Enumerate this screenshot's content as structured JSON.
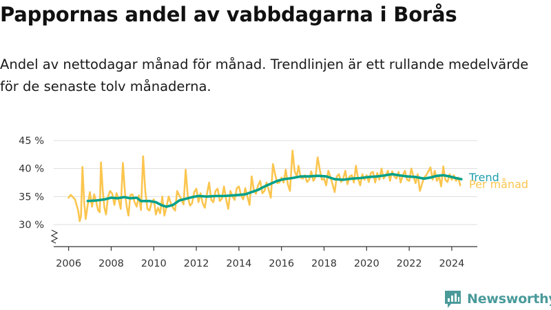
{
  "title": "Pappornas andel av vabbdagarna i Borås",
  "subtitle": "Andel av nettodagar månad för månad. Trendlinjen är ett rullande medelvärde för de senaste tolv månaderna.",
  "brand": {
    "name": "Newsworthy",
    "logo_icon": "newsworthy-logo-icon"
  },
  "colors": {
    "monthly": "#FBC54E",
    "trend": "#00A08A",
    "trend_label": "#1E9FAE",
    "grid": "#dddddd",
    "axis": "#333333",
    "brand": "#4a9a9a"
  },
  "chart_data": {
    "type": "line",
    "title": "Pappornas andel av vabbdagarna i Borås",
    "subtitle": "Andel av nettodagar månad för månad. Trendlinjen är ett rullande medelvärde för de senaste tolv månaderna.",
    "xlabel": "",
    "ylabel": "",
    "xlim": [
      2005.3,
      2025.2
    ],
    "ylim": [
      30,
      45
    ],
    "axis_break": true,
    "grid": true,
    "y_ticks": [
      30,
      35,
      40,
      45
    ],
    "y_tick_labels": [
      "30 %",
      "35 %",
      "40 %",
      "45 %"
    ],
    "x_ticks": [
      2006,
      2008,
      2010,
      2012,
      2014,
      2016,
      2018,
      2020,
      2022,
      2024
    ],
    "x_tick_labels": [
      "2006",
      "2008",
      "2010",
      "2012",
      "2014",
      "2016",
      "2018",
      "2020",
      "2022",
      "2024"
    ],
    "series": [
      {
        "name": "Per månad",
        "color": "#FBC54E",
        "points": [
          [
            2006.0,
            34.8
          ],
          [
            2006.1,
            35.3
          ],
          [
            2006.3,
            34.5
          ],
          [
            2006.45,
            32.5
          ],
          [
            2006.52,
            30.6
          ],
          [
            2006.58,
            31.5
          ],
          [
            2006.65,
            40.3
          ],
          [
            2006.73,
            34.0
          ],
          [
            2006.8,
            31.0
          ],
          [
            2006.9,
            33.5
          ],
          [
            2007.0,
            35.8
          ],
          [
            2007.1,
            33.2
          ],
          [
            2007.2,
            35.4
          ],
          [
            2007.3,
            34.0
          ],
          [
            2007.38,
            32.6
          ],
          [
            2007.46,
            32.2
          ],
          [
            2007.52,
            41.1
          ],
          [
            2007.6,
            36.2
          ],
          [
            2007.68,
            33.0
          ],
          [
            2007.76,
            31.8
          ],
          [
            2007.85,
            35.0
          ],
          [
            2007.95,
            36.0
          ],
          [
            2008.05,
            35.5
          ],
          [
            2008.15,
            33.5
          ],
          [
            2008.25,
            35.6
          ],
          [
            2008.35,
            34.4
          ],
          [
            2008.45,
            32.8
          ],
          [
            2008.55,
            41.0
          ],
          [
            2008.65,
            35.6
          ],
          [
            2008.73,
            33.2
          ],
          [
            2008.81,
            31.6
          ],
          [
            2008.9,
            35.3
          ],
          [
            2009.0,
            35.4
          ],
          [
            2009.1,
            34.0
          ],
          [
            2009.2,
            33.2
          ],
          [
            2009.3,
            35.2
          ],
          [
            2009.4,
            32.6
          ],
          [
            2009.5,
            42.2
          ],
          [
            2009.6,
            36.0
          ],
          [
            2009.7,
            32.8
          ],
          [
            2009.8,
            32.5
          ],
          [
            2009.9,
            34.0
          ],
          [
            2010.0,
            34.5
          ],
          [
            2010.1,
            31.8
          ],
          [
            2010.2,
            33.0
          ],
          [
            2010.3,
            32.0
          ],
          [
            2010.4,
            35.0
          ],
          [
            2010.5,
            31.6
          ],
          [
            2010.6,
            33.2
          ],
          [
            2010.7,
            35.0
          ],
          [
            2010.8,
            33.8
          ],
          [
            2010.9,
            33.0
          ],
          [
            2011.0,
            32.5
          ],
          [
            2011.1,
            36.0
          ],
          [
            2011.2,
            35.2
          ],
          [
            2011.3,
            34.5
          ],
          [
            2011.4,
            33.6
          ],
          [
            2011.5,
            39.8
          ],
          [
            2011.6,
            35.0
          ],
          [
            2011.7,
            33.4
          ],
          [
            2011.8,
            33.8
          ],
          [
            2011.9,
            35.8
          ],
          [
            2012.0,
            36.4
          ],
          [
            2012.1,
            34.0
          ],
          [
            2012.2,
            35.6
          ],
          [
            2012.3,
            33.8
          ],
          [
            2012.4,
            33.0
          ],
          [
            2012.5,
            35.5
          ],
          [
            2012.6,
            37.5
          ],
          [
            2012.7,
            34.4
          ],
          [
            2012.8,
            34.0
          ],
          [
            2012.9,
            36.0
          ],
          [
            2013.0,
            36.4
          ],
          [
            2013.1,
            34.2
          ],
          [
            2013.2,
            34.6
          ],
          [
            2013.3,
            36.8
          ],
          [
            2013.4,
            34.5
          ],
          [
            2013.5,
            32.8
          ],
          [
            2013.6,
            36.0
          ],
          [
            2013.7,
            35.0
          ],
          [
            2013.8,
            34.4
          ],
          [
            2013.9,
            36.5
          ],
          [
            2014.0,
            36.8
          ],
          [
            2014.1,
            35.2
          ],
          [
            2014.2,
            34.5
          ],
          [
            2014.3,
            36.5
          ],
          [
            2014.4,
            35.0
          ],
          [
            2014.5,
            33.5
          ],
          [
            2014.6,
            38.6
          ],
          [
            2014.7,
            36.2
          ],
          [
            2014.8,
            35.5
          ],
          [
            2014.9,
            37.0
          ],
          [
            2015.0,
            37.8
          ],
          [
            2015.1,
            35.6
          ],
          [
            2015.2,
            36.0
          ],
          [
            2015.3,
            37.5
          ],
          [
            2015.4,
            36.2
          ],
          [
            2015.5,
            34.8
          ],
          [
            2015.6,
            40.8
          ],
          [
            2015.7,
            39.0
          ],
          [
            2015.8,
            37.4
          ],
          [
            2015.9,
            37.5
          ],
          [
            2016.0,
            38.4
          ],
          [
            2016.1,
            37.5
          ],
          [
            2016.2,
            39.8
          ],
          [
            2016.3,
            37.2
          ],
          [
            2016.4,
            36.0
          ],
          [
            2016.52,
            43.2
          ],
          [
            2016.62,
            39.5
          ],
          [
            2016.72,
            38.6
          ],
          [
            2016.8,
            40.5
          ],
          [
            2016.9,
            38.4
          ],
          [
            2017.0,
            38.2
          ],
          [
            2017.1,
            38.8
          ],
          [
            2017.2,
            37.6
          ],
          [
            2017.3,
            38.0
          ],
          [
            2017.4,
            39.5
          ],
          [
            2017.5,
            37.8
          ],
          [
            2017.6,
            38.5
          ],
          [
            2017.7,
            42.0
          ],
          [
            2017.8,
            39.8
          ],
          [
            2017.9,
            38.0
          ],
          [
            2018.0,
            38.2
          ],
          [
            2018.1,
            37.0
          ],
          [
            2018.2,
            39.6
          ],
          [
            2018.3,
            38.5
          ],
          [
            2018.4,
            37.2
          ],
          [
            2018.5,
            35.8
          ],
          [
            2018.6,
            38.6
          ],
          [
            2018.7,
            39.0
          ],
          [
            2018.8,
            37.6
          ],
          [
            2018.9,
            38.2
          ],
          [
            2019.0,
            39.6
          ],
          [
            2019.1,
            37.2
          ],
          [
            2019.2,
            38.6
          ],
          [
            2019.3,
            38.8
          ],
          [
            2019.4,
            37.5
          ],
          [
            2019.5,
            40.5
          ],
          [
            2019.6,
            38.2
          ],
          [
            2019.7,
            37.0
          ],
          [
            2019.8,
            39.0
          ],
          [
            2019.9,
            38.0
          ],
          [
            2020.0,
            38.8
          ],
          [
            2020.1,
            37.6
          ],
          [
            2020.2,
            39.2
          ],
          [
            2020.3,
            39.4
          ],
          [
            2020.4,
            37.5
          ],
          [
            2020.5,
            39.2
          ],
          [
            2020.6,
            38.0
          ],
          [
            2020.7,
            40.0
          ],
          [
            2020.8,
            38.2
          ],
          [
            2020.9,
            38.8
          ],
          [
            2021.0,
            39.6
          ],
          [
            2021.1,
            37.8
          ],
          [
            2021.2,
            39.5
          ],
          [
            2021.3,
            38.6
          ],
          [
            2021.4,
            38.2
          ],
          [
            2021.5,
            39.4
          ],
          [
            2021.6,
            37.5
          ],
          [
            2021.7,
            38.8
          ],
          [
            2021.8,
            39.6
          ],
          [
            2021.9,
            38.0
          ],
          [
            2022.0,
            37.8
          ],
          [
            2022.1,
            40.0
          ],
          [
            2022.2,
            38.6
          ],
          [
            2022.3,
            37.4
          ],
          [
            2022.4,
            39.0
          ],
          [
            2022.5,
            36.0
          ],
          [
            2022.6,
            37.2
          ],
          [
            2022.7,
            38.4
          ],
          [
            2022.8,
            38.8
          ],
          [
            2022.9,
            39.5
          ],
          [
            2023.0,
            40.2
          ],
          [
            2023.1,
            38.0
          ],
          [
            2023.2,
            39.6
          ],
          [
            2023.3,
            37.8
          ],
          [
            2023.4,
            38.6
          ],
          [
            2023.5,
            36.8
          ],
          [
            2023.6,
            40.4
          ],
          [
            2023.7,
            38.0
          ],
          [
            2023.8,
            37.6
          ],
          [
            2023.9,
            39.0
          ],
          [
            2024.0,
            38.0
          ],
          [
            2024.1,
            38.8
          ],
          [
            2024.2,
            37.8
          ],
          [
            2024.3,
            38.4
          ],
          [
            2024.4,
            37.0
          ]
        ]
      },
      {
        "name": "Trend",
        "color": "#00A08A",
        "points": [
          [
            2006.9,
            34.2
          ],
          [
            2007.3,
            34.3
          ],
          [
            2007.7,
            34.5
          ],
          [
            2008.0,
            34.8
          ],
          [
            2008.3,
            34.7
          ],
          [
            2008.6,
            34.9
          ],
          [
            2008.9,
            34.7
          ],
          [
            2009.2,
            34.8
          ],
          [
            2009.4,
            34.2
          ],
          [
            2009.8,
            34.2
          ],
          [
            2010.1,
            34.0
          ],
          [
            2010.4,
            33.4
          ],
          [
            2010.6,
            33.2
          ],
          [
            2010.9,
            33.5
          ],
          [
            2011.2,
            34.3
          ],
          [
            2011.5,
            34.6
          ],
          [
            2011.8,
            34.9
          ],
          [
            2012.1,
            35.1
          ],
          [
            2012.5,
            35.0
          ],
          [
            2012.9,
            35.1
          ],
          [
            2013.3,
            35.1
          ],
          [
            2013.7,
            35.2
          ],
          [
            2014.0,
            35.3
          ],
          [
            2014.3,
            35.4
          ],
          [
            2014.6,
            35.8
          ],
          [
            2014.9,
            36.2
          ],
          [
            2015.2,
            36.8
          ],
          [
            2015.5,
            37.3
          ],
          [
            2015.8,
            37.8
          ],
          [
            2016.1,
            38.1
          ],
          [
            2016.5,
            38.3
          ],
          [
            2016.9,
            38.6
          ],
          [
            2017.3,
            38.6
          ],
          [
            2017.7,
            38.7
          ],
          [
            2018.1,
            38.6
          ],
          [
            2018.5,
            38.1
          ],
          [
            2018.9,
            38.0
          ],
          [
            2019.3,
            38.2
          ],
          [
            2019.7,
            38.3
          ],
          [
            2020.1,
            38.5
          ],
          [
            2020.5,
            38.6
          ],
          [
            2020.9,
            38.8
          ],
          [
            2021.2,
            39.0
          ],
          [
            2021.5,
            38.8
          ],
          [
            2021.9,
            38.6
          ],
          [
            2022.3,
            38.5
          ],
          [
            2022.7,
            38.2
          ],
          [
            2023.0,
            38.4
          ],
          [
            2023.3,
            38.7
          ],
          [
            2023.6,
            38.8
          ],
          [
            2023.9,
            38.6
          ],
          [
            2024.2,
            38.3
          ],
          [
            2024.45,
            38.1
          ]
        ]
      }
    ],
    "legend_position": "right-end-labels"
  }
}
